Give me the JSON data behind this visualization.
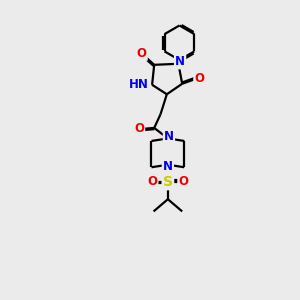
{
  "background_color": "#ebebeb",
  "bond_color": "#000000",
  "N_color": "#0000ee",
  "O_color": "#ee0000",
  "S_color": "#cccc00",
  "line_width": 1.6,
  "font_size_atom": 8.5,
  "figsize": [
    3.0,
    3.0
  ],
  "dpi": 100,
  "xlim": [
    0,
    10
  ],
  "ylim": [
    0,
    14
  ]
}
